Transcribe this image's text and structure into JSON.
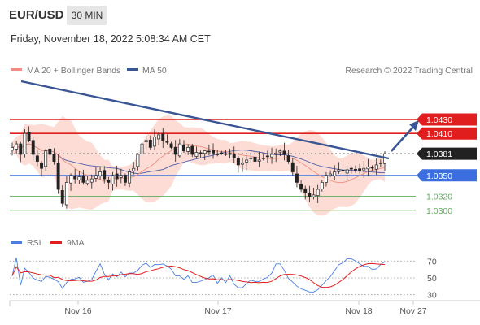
{
  "header": {
    "symbol": "EUR/USD",
    "timeframe": "30 MIN"
  },
  "timestamp": "Friday, November 18, 2022 5:08:34 AM CET",
  "legend": {
    "ma_bb": "MA 20 + Bollinger Bands",
    "ma50": "MA 50",
    "source": "Research © 2022 Trading Central"
  },
  "rsi_legend": {
    "rsi": "RSI",
    "ma9": "9MA"
  },
  "colors": {
    "resistance": "#e01e1e",
    "support": "#3b6fe0",
    "target": "#5fae5f",
    "trend": "#3a5593",
    "bollinger": "#fbd0c7",
    "ma50": "#4a5ea8",
    "ma20": "#f09080",
    "rsi": "#4a7fe0",
    "rsi_ma": "#e01e1e"
  },
  "chart_data": [
    {
      "type": "candlestick",
      "x_ticks": [
        "Nov 16",
        "Nov 17",
        "Nov 18",
        "Nov 27"
      ],
      "levels": [
        {
          "label": "1.0430",
          "value": 1.043,
          "kind": "resistance"
        },
        {
          "label": "1.0410",
          "value": 1.041,
          "kind": "resistance"
        },
        {
          "label": "1.0381",
          "value": 1.0381,
          "kind": "last"
        },
        {
          "label": "1.0350",
          "value": 1.035,
          "kind": "support"
        },
        {
          "label": "1.0320",
          "value": 1.032,
          "kind": "target"
        },
        {
          "label": "1.0300",
          "value": 1.03,
          "kind": "target"
        }
      ],
      "ylim": [
        1.028,
        1.048
      ],
      "closes": [
        1.039,
        1.0395,
        1.038,
        1.041,
        1.04,
        1.038,
        1.037,
        1.036,
        1.0385,
        1.038,
        1.037,
        1.033,
        1.031,
        1.034,
        1.035,
        1.0345,
        1.0348,
        1.034,
        1.0343,
        1.0345,
        1.035,
        1.0355,
        1.0345,
        1.034,
        1.035,
        1.0345,
        1.035,
        1.034,
        1.0355,
        1.036,
        1.038,
        1.0395,
        1.04,
        1.039,
        1.0405,
        1.0408,
        1.04,
        1.0398,
        1.039,
        1.038,
        1.0395,
        1.0385,
        1.039,
        1.038,
        1.0383,
        1.0382,
        1.0385,
        1.0384,
        1.0382,
        1.038,
        1.0382,
        1.0381,
        1.038,
        1.0375,
        1.0365,
        1.0368,
        1.0372,
        1.0375,
        1.037,
        1.0372,
        1.0375,
        1.0377,
        1.038,
        1.0382,
        1.0385,
        1.038,
        1.037,
        1.0355,
        1.034,
        1.033,
        1.0325,
        1.032,
        1.0322,
        1.033,
        1.034,
        1.035,
        1.0352,
        1.0355,
        1.0358,
        1.0356,
        1.0358,
        1.036,
        1.0358,
        1.0357,
        1.036,
        1.0362,
        1.0361,
        1.0365,
        1.0368,
        1.0381
      ],
      "rsi": {
        "levels": [
          70,
          50,
          30
        ],
        "ylim": [
          20,
          80
        ]
      },
      "trendline": {
        "from": [
          0,
          1.042
        ],
        "to": [
          1,
          1.0373
        ]
      },
      "forecast_target": 1.043
    }
  ]
}
